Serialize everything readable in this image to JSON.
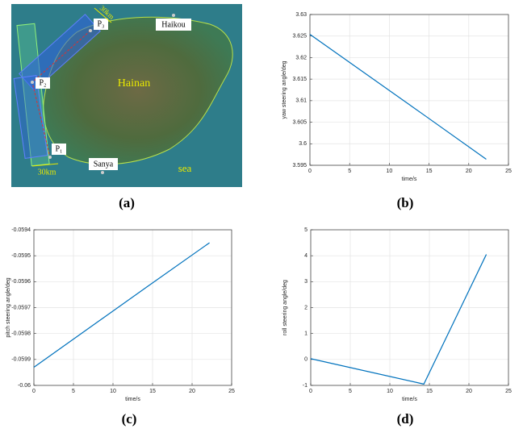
{
  "map": {
    "labels": {
      "haikou": "Haikou",
      "hainan": "Hainan",
      "sanya": "Sanya",
      "sea": "sea",
      "p1": "P₁",
      "p2": "P₂",
      "p3": "P₃",
      "width_top": "30km",
      "width_bottom": "30km"
    }
  },
  "captions": [
    "(a)",
    "(b)",
    "(c)",
    "(d)"
  ],
  "chart_data": [
    {
      "type": "line",
      "xlabel": "time/s",
      "ylabel": "yaw steering angle/deg",
      "xlim": [
        0,
        25
      ],
      "xticks": [
        0,
        5,
        10,
        15,
        20,
        25
      ],
      "ylim": [
        3.595,
        3.63
      ],
      "yticks": [
        3.595,
        3.6,
        3.605,
        3.61,
        3.615,
        3.62,
        3.625,
        3.63
      ],
      "grid": true,
      "series": [
        {
          "color": "#0072bd",
          "x": [
            0,
            14.5,
            22.2
          ],
          "values": [
            3.6254,
            3.6065,
            3.5964
          ]
        }
      ]
    },
    {
      "type": "line",
      "xlabel": "time/s",
      "ylabel": "pitch steering angle/deg",
      "xlim": [
        0,
        25
      ],
      "xticks": [
        0,
        5,
        10,
        15,
        20,
        25
      ],
      "ylim": [
        -0.06,
        -0.0594
      ],
      "yticks": [
        -0.06,
        -0.0599,
        -0.0598,
        -0.0597,
        -0.0596,
        -0.0595,
        -0.0594
      ],
      "grid": true,
      "series": [
        {
          "color": "#0072bd",
          "x": [
            0,
            14.3,
            22.2
          ],
          "values": [
            -0.05993,
            -0.05962,
            -0.05945
          ]
        }
      ]
    },
    {
      "type": "line",
      "xlabel": "time/s",
      "ylabel": "roll steering angle/deg",
      "xlim": [
        0,
        25
      ],
      "xticks": [
        0,
        5,
        10,
        15,
        20,
        25
      ],
      "ylim": [
        -1,
        5
      ],
      "yticks": [
        -1,
        0,
        1,
        2,
        3,
        4,
        5
      ],
      "grid": true,
      "series": [
        {
          "color": "#0072bd",
          "x": [
            0,
            14.3,
            22.2
          ],
          "values": [
            0.03,
            -0.95,
            4.05
          ]
        }
      ]
    }
  ]
}
